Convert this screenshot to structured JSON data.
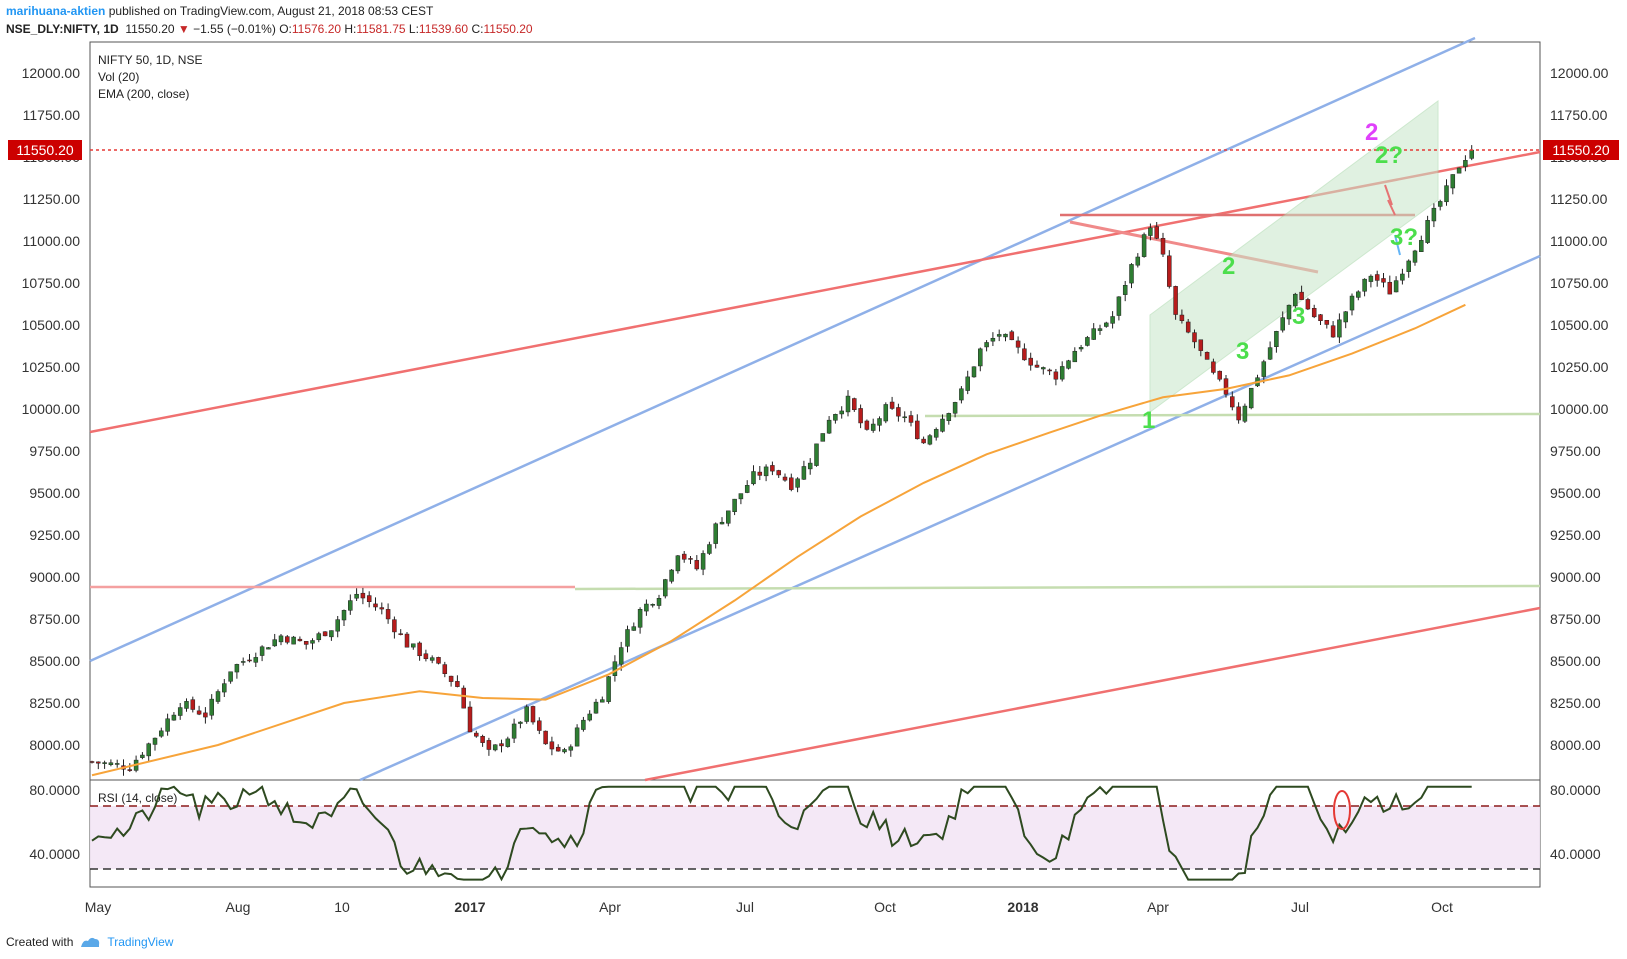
{
  "header": {
    "author": "marihuana-aktien",
    "published": "published on TradingView.com, August 21, 2018 08:53 CEST",
    "symbol": "NSE_DLY:NIFTY, 1D",
    "last": "11550.20",
    "change": "−1.55 (−0.01%)",
    "o_label": "O:",
    "o_val": "11576.20",
    "h_label": "H:",
    "h_val": "11581.75",
    "l_label": "L:",
    "l_val": "11539.60",
    "c_label": "C:",
    "c_val": "11550.20"
  },
  "legend": {
    "title": "NIFTY 50, 1D, NSE",
    "vol": "Vol (20)",
    "ema": "EMA (200, close)",
    "rsi": "RSI (14, close)"
  },
  "footer": {
    "created_with": "Created with",
    "brand": "TradingView"
  },
  "chart_data": {
    "type": "candlestick",
    "price_axis": {
      "range": [
        7800,
        12200
      ],
      "ticks": [
        "12000.00",
        "11750.00",
        "11500.00",
        "11250.00",
        "11000.00",
        "10750.00",
        "10500.00",
        "10250.00",
        "10000.00",
        "9750.00",
        "9500.00",
        "9250.00",
        "9000.00",
        "8750.00",
        "8500.00",
        "8250.00",
        "8000.00"
      ],
      "last_price_label": "11550.20",
      "last_price": 11550.2
    },
    "time_axis": {
      "ticks": [
        "May",
        "Aug",
        "10",
        "2017",
        "Apr",
        "Jul",
        "Oct",
        "2018",
        "Apr",
        "Jul",
        "Oct"
      ]
    },
    "rsi": {
      "ticks": [
        "80.0000",
        "40.0000"
      ],
      "overbought": 70,
      "oversold": 30,
      "range": [
        20,
        85
      ]
    },
    "close_path": [
      [
        0,
        7900
      ],
      [
        6,
        7870
      ],
      [
        10,
        8050
      ],
      [
        14,
        8250
      ],
      [
        18,
        8180
      ],
      [
        22,
        8450
      ],
      [
        26,
        8550
      ],
      [
        30,
        8650
      ],
      [
        34,
        8600
      ],
      [
        38,
        8700
      ],
      [
        42,
        8900
      ],
      [
        46,
        8800
      ],
      [
        50,
        8600
      ],
      [
        54,
        8500
      ],
      [
        58,
        8350
      ],
      [
        60,
        8100
      ],
      [
        63,
        7950
      ],
      [
        66,
        8050
      ],
      [
        69,
        8200
      ],
      [
        72,
        8000
      ],
      [
        75,
        7950
      ],
      [
        78,
        8150
      ],
      [
        81,
        8300
      ],
      [
        84,
        8600
      ],
      [
        87,
        8800
      ],
      [
        90,
        8900
      ],
      [
        93,
        9150
      ],
      [
        96,
        9050
      ],
      [
        99,
        9300
      ],
      [
        102,
        9450
      ],
      [
        105,
        9600
      ],
      [
        108,
        9650
      ],
      [
        111,
        9550
      ],
      [
        114,
        9700
      ],
      [
        117,
        9950
      ],
      [
        120,
        10050
      ],
      [
        123,
        9850
      ],
      [
        126,
        10000
      ],
      [
        129,
        9950
      ],
      [
        132,
        9800
      ],
      [
        135,
        9950
      ],
      [
        138,
        10100
      ],
      [
        141,
        10350
      ],
      [
        144,
        10450
      ],
      [
        147,
        10350
      ],
      [
        150,
        10250
      ],
      [
        153,
        10200
      ],
      [
        156,
        10350
      ],
      [
        159,
        10450
      ],
      [
        162,
        10550
      ],
      [
        165,
        10850
      ],
      [
        168,
        11100
      ],
      [
        170,
        10900
      ],
      [
        172,
        10550
      ],
      [
        175,
        10400
      ],
      [
        178,
        10200
      ],
      [
        180,
        10100
      ],
      [
        182,
        9950
      ],
      [
        185,
        10200
      ],
      [
        188,
        10450
      ],
      [
        191,
        10700
      ],
      [
        194,
        10550
      ],
      [
        197,
        10450
      ],
      [
        200,
        10650
      ],
      [
        203,
        10800
      ],
      [
        206,
        10700
      ],
      [
        209,
        10900
      ],
      [
        212,
        11100
      ],
      [
        215,
        11300
      ],
      [
        217,
        11450
      ],
      [
        219,
        11550
      ]
    ],
    "ema200_path": [
      [
        0,
        7820
      ],
      [
        20,
        8000
      ],
      [
        40,
        8250
      ],
      [
        52,
        8320
      ],
      [
        62,
        8280
      ],
      [
        72,
        8270
      ],
      [
        82,
        8420
      ],
      [
        92,
        8620
      ],
      [
        102,
        8860
      ],
      [
        112,
        9120
      ],
      [
        122,
        9360
      ],
      [
        132,
        9560
      ],
      [
        142,
        9730
      ],
      [
        152,
        9860
      ],
      [
        160,
        9960
      ],
      [
        170,
        10070
      ],
      [
        180,
        10120
      ],
      [
        190,
        10200
      ],
      [
        200,
        10330
      ],
      [
        210,
        10480
      ],
      [
        218,
        10620
      ]
    ],
    "annotations": {
      "wave_labels": [
        "1",
        "2",
        "3",
        "3",
        "3",
        "2",
        "3?",
        "2?"
      ],
      "trendlines": "blue parallel channel; red trendlines; green horizontal supports; green rising channel"
    }
  }
}
